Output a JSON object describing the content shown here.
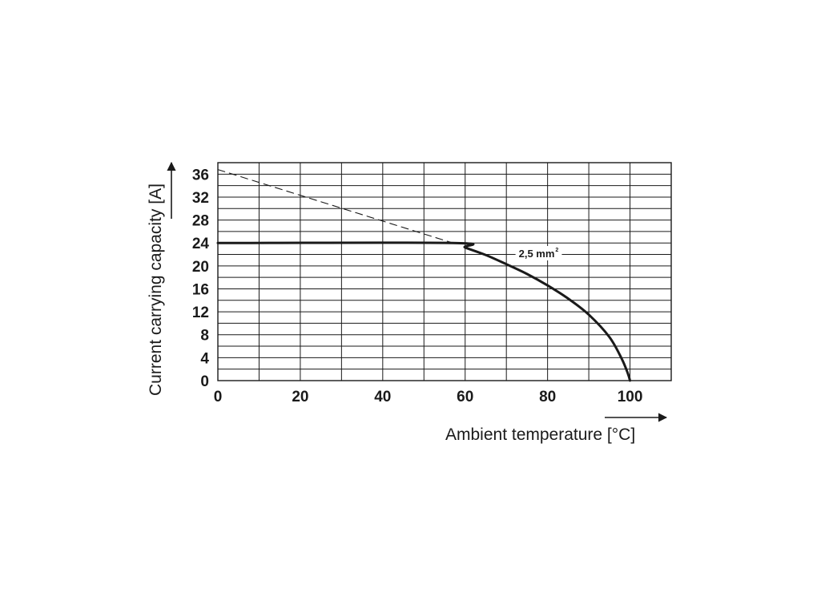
{
  "chart_data": {
    "type": "line",
    "xlabel": "Ambient temperature [°C]",
    "ylabel": "Current carrying capacity [A]",
    "xlim": [
      0,
      110
    ],
    "ylim": [
      0,
      38
    ],
    "x_ticks": [
      0,
      20,
      40,
      60,
      80,
      100
    ],
    "y_ticks": [
      0,
      4,
      8,
      12,
      16,
      20,
      24,
      28,
      32,
      36
    ],
    "grid": true,
    "series": [
      {
        "name": "2,5 mm²",
        "style": "solid",
        "x": [
          0,
          57,
          60,
          65,
          70,
          75,
          80,
          85,
          90,
          95,
          98,
          99.5,
          100
        ],
        "y": [
          24,
          24,
          23.2,
          21.9,
          20.3,
          18.6,
          16.6,
          14.3,
          11.5,
          7.6,
          3.8,
          1.2,
          0
        ]
      },
      {
        "name": "",
        "style": "dashed",
        "x": [
          0,
          57
        ],
        "y": [
          36.8,
          24
        ]
      }
    ],
    "annotations": [
      {
        "text": "2,5 mm",
        "superscript": "2",
        "x": 73,
        "y": 21.8
      }
    ]
  }
}
